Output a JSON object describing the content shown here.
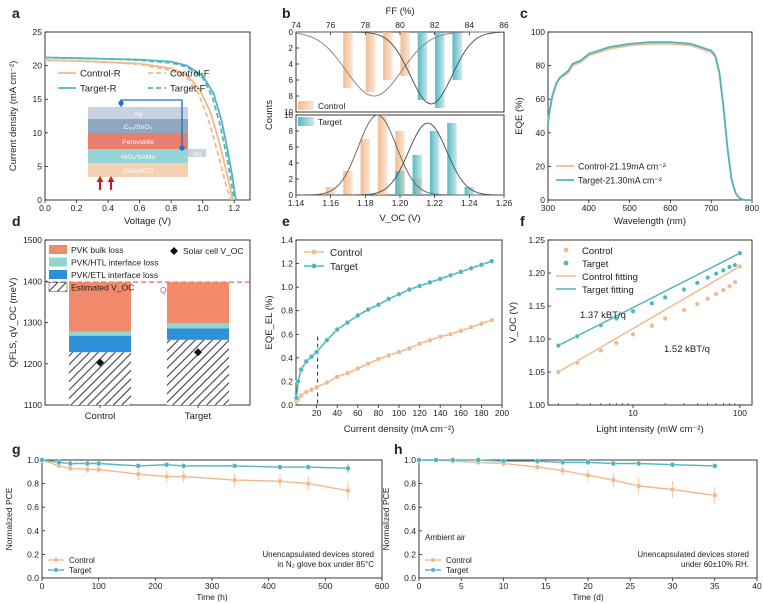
{
  "colors": {
    "control": "#f2b98c",
    "target": "#4fb6bf",
    "pvk_bulk": "#f08a6a",
    "pvk_htl": "#8fd6cf",
    "pvk_etl": "#2e90d8",
    "qfls_line": "#e8555a",
    "axis": "#222222"
  },
  "chart_data": [
    {
      "id": "a",
      "panel_label": "a",
      "type": "line",
      "xlabel": "Voltage (V)",
      "ylabel": "Current density (mA cm⁻²)",
      "xlim": [
        0.0,
        1.3
      ],
      "ylim": [
        0,
        25
      ],
      "xticks": [
        "0.0",
        "0.2",
        "0.4",
        "0.6",
        "0.8",
        "1.0",
        "1.2"
      ],
      "yticks": [
        "0",
        "5",
        "10",
        "15",
        "20",
        "25"
      ],
      "legend": [
        "Control-R",
        "Control-F",
        "Target-R",
        "Target-F"
      ],
      "series": [
        {
          "name": "Control-R",
          "x": [
            0,
            0.2,
            0.4,
            0.6,
            0.8,
            0.9,
            0.98,
            1.05,
            1.1,
            1.14,
            1.17,
            1.19
          ],
          "y": [
            20.8,
            20.7,
            20.5,
            20.3,
            19.6,
            18.6,
            16.5,
            13.0,
            9.0,
            5.2,
            2.2,
            0
          ]
        },
        {
          "name": "Control-F",
          "x": [
            0,
            0.2,
            0.4,
            0.6,
            0.8,
            0.9,
            0.97,
            1.03,
            1.08,
            1.12,
            1.15,
            1.18
          ],
          "y": [
            20.8,
            20.7,
            20.5,
            20.2,
            19.3,
            18.2,
            16.0,
            12.4,
            8.4,
            4.8,
            2.0,
            0
          ]
        },
        {
          "name": "Target-R",
          "x": [
            0,
            0.2,
            0.4,
            0.6,
            0.8,
            0.9,
            1.0,
            1.07,
            1.12,
            1.16,
            1.19,
            1.21
          ],
          "y": [
            21.2,
            21.1,
            21.0,
            20.9,
            20.6,
            20.0,
            18.5,
            15.8,
            11.8,
            7.2,
            3.2,
            0
          ]
        },
        {
          "name": "Target-F",
          "x": [
            0,
            0.2,
            0.4,
            0.6,
            0.8,
            0.9,
            1.0,
            1.06,
            1.11,
            1.15,
            1.18,
            1.2
          ],
          "y": [
            21.2,
            21.1,
            21.0,
            20.8,
            20.4,
            19.8,
            18.2,
            15.4,
            11.2,
            6.8,
            2.8,
            0
          ]
        }
      ],
      "inset_layers": [
        "Ag",
        "C₆₀/SnO₂",
        "Perovskite",
        "NiOₓ/SAMs",
        "Glass/ITO"
      ],
      "inset_contact": "Ag"
    },
    {
      "id": "b",
      "panel_label": "b",
      "type": "bar",
      "top_axis_label": "FF (%)",
      "xlabel": "V_OC (V)",
      "ylabel": "Counts",
      "top_xlim": [
        74,
        86
      ],
      "xlim": [
        1.14,
        1.26
      ],
      "top_xticks": [
        "74",
        "76",
        "78",
        "80",
        "82",
        "84",
        "86"
      ],
      "xticks": [
        "1.14",
        "1.16",
        "1.18",
        "1.20",
        "1.22",
        "1.24",
        "1.26"
      ],
      "top_yticks": [
        "0",
        "2",
        "4",
        "6",
        "8",
        "10"
      ],
      "bottom_yticks": [
        "0",
        "2",
        "4",
        "6",
        "8",
        "10"
      ],
      "legend": [
        "Control",
        "Target"
      ],
      "ff": {
        "control": {
          "centers": [
            77,
            78.3,
            79.3,
            80.3
          ],
          "values": [
            7,
            7.5,
            6,
            5.5
          ]
        },
        "target": {
          "centers": [
            81.3,
            82.3,
            83.3
          ],
          "values": [
            8.5,
            9.5,
            6
          ]
        },
        "control_fit": {
          "mu": 78.5,
          "sigma": 1.6,
          "peak": 8
        },
        "target_fit": {
          "mu": 81.8,
          "sigma": 1.2,
          "peak": 9
        }
      },
      "voc": {
        "control": {
          "centers": [
            1.16,
            1.17,
            1.18,
            1.19,
            1.2,
            1.21
          ],
          "values": [
            1,
            3,
            7,
            10,
            8,
            2
          ]
        },
        "target": {
          "centers": [
            1.2,
            1.21,
            1.22,
            1.23,
            1.24
          ],
          "values": [
            3,
            5,
            8,
            9,
            1
          ]
        },
        "control_fit": {
          "mu": 1.187,
          "sigma": 0.011,
          "peak": 10
        },
        "target_fit": {
          "mu": 1.216,
          "sigma": 0.011,
          "peak": 9
        }
      }
    },
    {
      "id": "c",
      "panel_label": "c",
      "type": "line",
      "xlabel": "Wavelength (nm)",
      "ylabel": "EQE (%)",
      "xlim": [
        300,
        800
      ],
      "ylim": [
        0,
        100
      ],
      "xticks": [
        "300",
        "400",
        "500",
        "600",
        "700",
        "800"
      ],
      "yticks": [
        "0",
        "20",
        "40",
        "60",
        "80",
        "100"
      ],
      "legend": [
        "Control-21.19mA cm⁻²",
        "Target-21.30mA cm⁻²"
      ],
      "series": [
        {
          "name": "Control-21.19mA cm⁻²",
          "x": [
            300,
            305,
            310,
            320,
            330,
            340,
            350,
            360,
            380,
            400,
            450,
            500,
            550,
            600,
            650,
            700,
            710,
            720,
            730,
            740,
            750,
            760,
            770,
            780,
            800
          ],
          "y": [
            47,
            55,
            62,
            70,
            73,
            74,
            76,
            80,
            82,
            86,
            90,
            92,
            93,
            93,
            92,
            88,
            85,
            75,
            55,
            30,
            12,
            4,
            1,
            0,
            0
          ]
        },
        {
          "name": "Target-21.30mA cm⁻²",
          "x": [
            300,
            305,
            310,
            320,
            330,
            340,
            350,
            360,
            380,
            400,
            450,
            500,
            550,
            600,
            650,
            700,
            710,
            720,
            730,
            740,
            750,
            760,
            770,
            780,
            800
          ],
          "y": [
            46,
            54,
            61,
            69,
            73,
            75,
            77,
            81,
            83,
            87,
            91,
            93,
            94,
            94,
            93,
            89,
            86,
            76,
            56,
            31,
            12,
            4,
            1,
            0,
            0
          ]
        }
      ]
    },
    {
      "id": "d",
      "panel_label": "d",
      "type": "bar",
      "ylabel": "QFLS, qV_OC (meV)",
      "ylim": [
        1100,
        1500
      ],
      "yticks": [
        "1100",
        "1200",
        "1300",
        "1400",
        "1500"
      ],
      "categories": [
        "Control",
        "Target"
      ],
      "qfls_sq": 1398,
      "qfls_sq_label": "QFLS_S.Q.",
      "estimated_voc": [
        1228,
        1258
      ],
      "etl_loss": [
        40,
        28
      ],
      "htl_loss": [
        10,
        12
      ],
      "bulk_loss": [
        120,
        100
      ],
      "solar_cell_voc": [
        1203,
        1228
      ],
      "legend": [
        "PVK bulk loss",
        "PVK/HTL interface loss",
        "PVK/ETL interface loss",
        "Estimated V_OC",
        "Solar cell V_OC"
      ]
    },
    {
      "id": "e",
      "panel_label": "e",
      "type": "line",
      "xlabel": "Current density (mA cm⁻²)",
      "ylabel": "EQE_EL (%)",
      "xlim": [
        0,
        200
      ],
      "ylim": [
        0,
        1.4
      ],
      "xticks": [
        "20",
        "40",
        "60",
        "80",
        "100",
        "120",
        "140",
        "160",
        "180",
        "200"
      ],
      "yticks": [
        "0.0",
        "0.2",
        "0.4",
        "0.6",
        "0.8",
        "1.0",
        "1.2",
        "1.4"
      ],
      "vline_x": 21,
      "legend": [
        "Control",
        "Target"
      ],
      "series": [
        {
          "name": "Control",
          "x": [
            0.5,
            2,
            5,
            10,
            15,
            20,
            30,
            40,
            50,
            60,
            70,
            80,
            90,
            100,
            110,
            120,
            130,
            140,
            150,
            160,
            170,
            180,
            190
          ],
          "y": [
            0.03,
            0.05,
            0.08,
            0.11,
            0.13,
            0.15,
            0.19,
            0.24,
            0.27,
            0.31,
            0.35,
            0.39,
            0.42,
            0.45,
            0.48,
            0.52,
            0.55,
            0.58,
            0.6,
            0.63,
            0.66,
            0.69,
            0.72
          ]
        },
        {
          "name": "Target",
          "x": [
            0.5,
            2,
            5,
            10,
            15,
            20,
            30,
            40,
            50,
            60,
            70,
            80,
            90,
            100,
            110,
            120,
            130,
            140,
            150,
            160,
            170,
            180,
            190
          ],
          "y": [
            0.06,
            0.2,
            0.3,
            0.37,
            0.41,
            0.45,
            0.55,
            0.64,
            0.7,
            0.76,
            0.81,
            0.85,
            0.9,
            0.94,
            0.98,
            1.01,
            1.04,
            1.07,
            1.1,
            1.13,
            1.16,
            1.19,
            1.22
          ]
        }
      ]
    },
    {
      "id": "f",
      "panel_label": "f",
      "type": "scatter",
      "xlabel": "Light intensity (mW cm⁻²)",
      "ylabel": "V_OC (V)",
      "xscale": "log",
      "xlim": [
        1.6,
        130
      ],
      "ylim": [
        1.0,
        1.25
      ],
      "xticks": [
        "10",
        "100"
      ],
      "yticks": [
        "1.00",
        "1.05",
        "1.10",
        "1.15",
        "1.20",
        "1.25"
      ],
      "legend": [
        "Control",
        "Target",
        "Control fitting",
        "Target fitting"
      ],
      "slope_labels": [
        "1.37 kBT/q",
        "1.52 kBT/q"
      ],
      "series": [
        {
          "name": "Control",
          "x": [
            2,
            3,
            5,
            7,
            10,
            15,
            20,
            30,
            40,
            50,
            60,
            70,
            80,
            90,
            100
          ],
          "y": [
            1.05,
            1.064,
            1.083,
            1.094,
            1.107,
            1.12,
            1.131,
            1.144,
            1.153,
            1.161,
            1.168,
            1.174,
            1.18,
            1.186,
            1.21
          ]
        },
        {
          "name": "Target",
          "x": [
            2,
            3,
            5,
            7,
            10,
            15,
            20,
            30,
            40,
            50,
            60,
            70,
            80,
            90,
            100
          ],
          "y": [
            1.09,
            1.104,
            1.121,
            1.131,
            1.142,
            1.154,
            1.163,
            1.175,
            1.185,
            1.193,
            1.199,
            1.204,
            1.209,
            1.212,
            1.23
          ]
        }
      ]
    },
    {
      "id": "g",
      "panel_label": "g",
      "type": "line",
      "xlabel": "Time (h)",
      "ylabel": "Normalized PCE",
      "xlim": [
        0,
        600
      ],
      "ylim": [
        0,
        1.0
      ],
      "xticks": [
        "0",
        "100",
        "200",
        "300",
        "400",
        "500",
        "600"
      ],
      "yticks": [
        "0.0",
        "0.2",
        "0.4",
        "0.6",
        "0.8",
        "1.0"
      ],
      "legend": [
        "Control",
        "Target"
      ],
      "annotation": [
        "Unencapsulated devices stored",
        "in N₂ glove box under 85°C"
      ],
      "series": [
        {
          "name": "Control",
          "x": [
            0,
            30,
            50,
            80,
            100,
            170,
            220,
            250,
            340,
            420,
            470,
            540
          ],
          "y": [
            1.0,
            0.95,
            0.93,
            0.92,
            0.92,
            0.88,
            0.86,
            0.86,
            0.83,
            0.82,
            0.8,
            0.74
          ],
          "err": [
            0,
            0.02,
            0.03,
            0.03,
            0.03,
            0.05,
            0.05,
            0.05,
            0.06,
            0.06,
            0.06,
            0.08
          ]
        },
        {
          "name": "Target",
          "x": [
            0,
            30,
            50,
            80,
            100,
            170,
            220,
            250,
            340,
            420,
            470,
            540
          ],
          "y": [
            1.0,
            0.98,
            0.97,
            0.97,
            0.97,
            0.95,
            0.96,
            0.95,
            0.95,
            0.94,
            0.94,
            0.93
          ],
          "err": [
            0,
            0.01,
            0.01,
            0.01,
            0.01,
            0.02,
            0.02,
            0.02,
            0.02,
            0.02,
            0.02,
            0.04
          ]
        }
      ]
    },
    {
      "id": "h",
      "panel_label": "h",
      "type": "line",
      "xlabel": "Time (d)",
      "ylabel": "Normalized PCE",
      "xlim": [
        0,
        40
      ],
      "ylim": [
        0,
        1.0
      ],
      "xticks": [
        "0",
        "5",
        "10",
        "15",
        "20",
        "25",
        "30",
        "35",
        "40"
      ],
      "yticks": [
        "0.0",
        "0.2",
        "0.4",
        "0.6",
        "0.8",
        "1.0"
      ],
      "legend": [
        "Control",
        "Target"
      ],
      "annotation_top": "Ambient air",
      "annotation": [
        "Unencapsulated devices stored",
        "under 60±10% RH."
      ],
      "series": [
        {
          "name": "Control",
          "x": [
            0,
            2,
            4,
            7,
            10,
            14,
            17,
            20,
            23,
            26,
            30,
            35
          ],
          "y": [
            1.0,
            1.0,
            0.99,
            0.98,
            0.97,
            0.94,
            0.91,
            0.87,
            0.83,
            0.78,
            0.75,
            0.7
          ],
          "err": [
            0,
            0.01,
            0.02,
            0.02,
            0.03,
            0.04,
            0.04,
            0.05,
            0.06,
            0.07,
            0.07,
            0.07
          ]
        },
        {
          "name": "Target",
          "x": [
            0,
            2,
            4,
            7,
            10,
            14,
            17,
            20,
            23,
            26,
            30,
            35
          ],
          "y": [
            1.0,
            1.0,
            1.0,
            1.0,
            0.99,
            0.99,
            0.98,
            0.98,
            0.97,
            0.97,
            0.96,
            0.95
          ],
          "err": [
            0,
            0.01,
            0.01,
            0.01,
            0.01,
            0.01,
            0.01,
            0.01,
            0.01,
            0.02,
            0.02,
            0.02
          ]
        }
      ]
    }
  ]
}
